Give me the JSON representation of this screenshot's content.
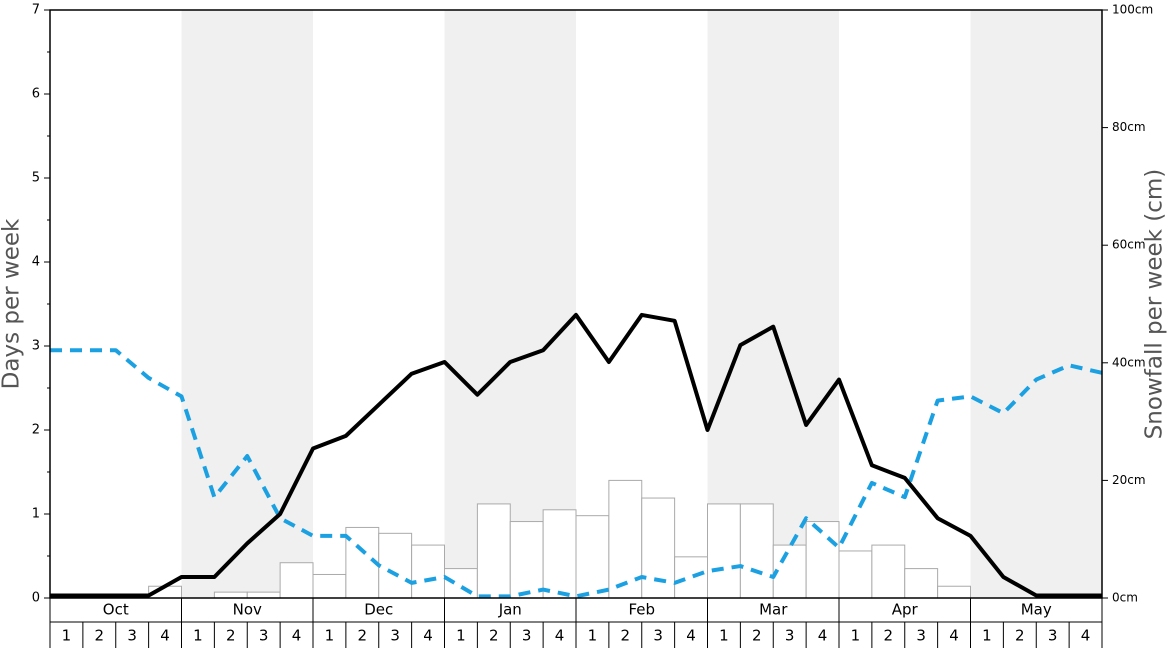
{
  "chart_data": {
    "type": "combo",
    "ylabel": "Days per week",
    "y2label": "Snowfall per week (cm)",
    "months": [
      "Oct",
      "Nov",
      "Dec",
      "Jan",
      "Feb",
      "Mar",
      "Apr",
      "May"
    ],
    "categories": [
      "1",
      "2",
      "3",
      "4",
      "1",
      "2",
      "3",
      "4",
      "1",
      "2",
      "3",
      "4",
      "1",
      "2",
      "3",
      "4",
      "1",
      "2",
      "3",
      "4",
      "1",
      "2",
      "3",
      "4",
      "1",
      "2",
      "3",
      "4",
      "1",
      "2",
      "3",
      "4"
    ],
    "x": [
      0,
      1,
      2,
      3,
      4,
      5,
      6,
      7,
      8,
      9,
      10,
      11,
      12,
      13,
      14,
      15,
      16,
      17,
      18,
      19,
      20,
      21,
      22,
      23,
      24,
      25,
      26,
      27,
      28,
      29,
      30,
      31,
      32
    ],
    "xlim": [
      0,
      32
    ],
    "ylim": [
      0,
      7
    ],
    "yticks": [
      0,
      1,
      2,
      3,
      4,
      5,
      6,
      7
    ],
    "y2lim": [
      0,
      100
    ],
    "y2ticks": [
      {
        "value": 0,
        "label": "0cm"
      },
      {
        "value": 20,
        "label": "20cm"
      },
      {
        "value": 40,
        "label": "40cm"
      },
      {
        "value": 60,
        "label": "60cm"
      },
      {
        "value": 80,
        "label": "80cm"
      },
      {
        "value": 100,
        "label": "100cm"
      }
    ],
    "series": [
      {
        "type": "bar",
        "axis": "y2",
        "color": "#ffffff",
        "values": [
          0,
          0,
          0,
          2,
          0,
          1,
          1,
          6,
          4,
          12,
          11,
          9,
          5,
          16,
          13,
          15,
          14,
          20,
          17,
          7,
          16,
          16,
          9,
          13,
          8,
          9,
          5,
          2,
          0,
          0,
          0,
          0
        ]
      },
      {
        "type": "line",
        "color": "#1ba1e2",
        "dashed": true,
        "values": [
          2.95,
          2.95,
          2.95,
          2.62,
          2.4,
          1.2,
          1.69,
          0.95,
          0.74,
          0.74,
          0.39,
          0.18,
          0.25,
          0.02,
          0.02,
          0.1,
          0.02,
          0.1,
          0.25,
          0.18,
          0.32,
          0.38,
          0.25,
          0.95,
          0.6,
          1.37,
          1.2,
          2.35,
          2.4,
          2.2,
          2.6,
          2.77,
          2.68
        ]
      },
      {
        "type": "line",
        "color": "#000000",
        "dashed": false,
        "values": [
          0.03,
          0.03,
          0.03,
          0.03,
          0.25,
          0.25,
          0.65,
          1.0,
          1.78,
          1.93,
          2.3,
          2.67,
          2.81,
          2.42,
          2.81,
          2.95,
          3.37,
          2.81,
          3.37,
          3.3,
          2.0,
          3.01,
          3.23,
          2.06,
          2.6,
          1.58,
          1.43,
          0.95,
          0.74,
          0.25,
          0.03,
          0.03,
          0.03
        ]
      }
    ]
  }
}
